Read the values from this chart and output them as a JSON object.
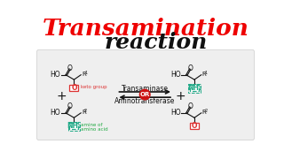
{
  "title_line1": "Transamination",
  "title_line2": "reaction",
  "title_color1": "#ee0000",
  "title_color2": "#111111",
  "bg_color": "#ffffff",
  "panel_bg": "#efefef",
  "enzyme_text1": "Transaminase",
  "enzyme_text2": "Aminotransferase",
  "or_text": "OR",
  "keto_label": "keto group",
  "amine_label1": "amine of",
  "amine_label2": "amino acid",
  "arrow_color": "#333333",
  "or_bg": "#cc1111",
  "keto_box_color": "#dd3333",
  "nh2_box_color": "#22aa88",
  "label_color_green": "#22aa44",
  "black": "#111111",
  "title1_size": 19,
  "title2_size": 18
}
